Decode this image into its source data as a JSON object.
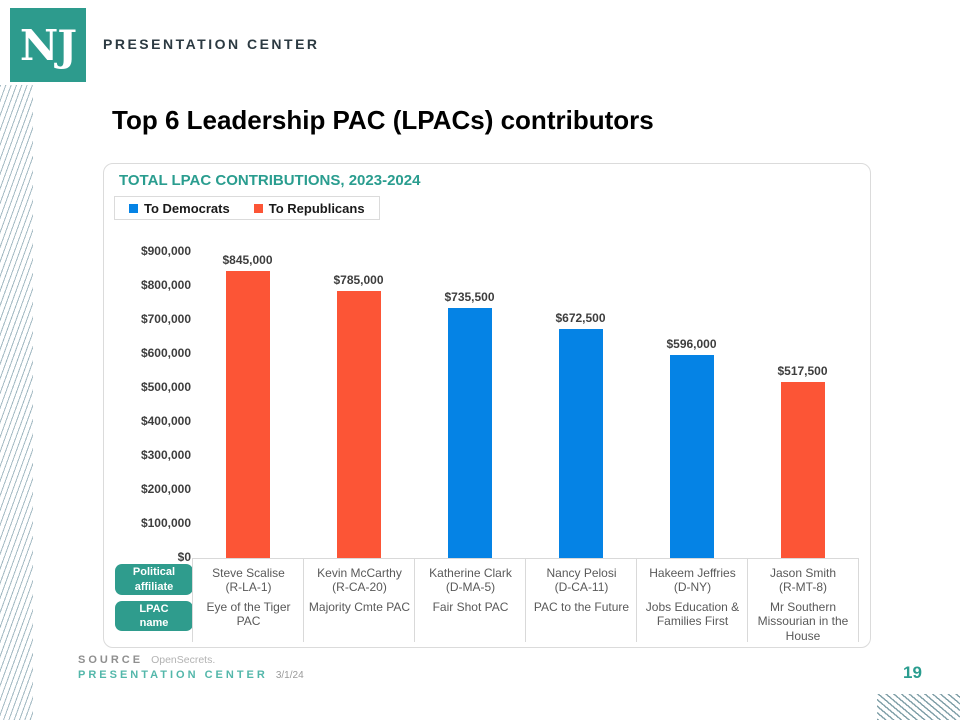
{
  "brand": {
    "logo_text": "NJ",
    "header_label": "PRESENTATION CENTER",
    "teal": "#2D9B8D"
  },
  "slide": {
    "title": "Top 6 Leadership PAC (LPACs) contributors",
    "page_number": "19"
  },
  "chart": {
    "title": "TOTAL LPAC CONTRIBUTIONS, 2023-2024",
    "legend": [
      {
        "label": "To Democrats",
        "color": "#0583E5"
      },
      {
        "label": "To Republicans",
        "color": "#FC5536"
      }
    ],
    "row_headers": {
      "affiliate": "Political\naffiliate",
      "lpac": "LPAC\nname"
    }
  },
  "chart_data": {
    "type": "bar",
    "title": "TOTAL LPAC CONTRIBUTIONS, 2023-2024",
    "unit": "USD",
    "ylim": [
      0,
      900000
    ],
    "ytick_interval": 100000,
    "ytick_labels_top_to_bottom": [
      "$900,000",
      "$800,000",
      "$700,000",
      "$600,000",
      "$500,000",
      "$400,000",
      "$300,000",
      "$200,000",
      "$100,000",
      "$0"
    ],
    "grid": false,
    "legend_position": "top-left",
    "party_colors": {
      "D": "#0583E5",
      "R": "#FC5536"
    },
    "bars": [
      {
        "politician": "Steve Scalise",
        "district": "(R-LA-1)",
        "pac": "Eye of the Tiger PAC",
        "value": 845000,
        "label": "$845,000",
        "party": "R"
      },
      {
        "politician": "Kevin McCarthy",
        "district": "(R-CA-20)",
        "pac": "Majority Cmte PAC",
        "value": 785000,
        "label": "$785,000",
        "party": "R"
      },
      {
        "politician": "Katherine Clark",
        "district": "(D-MA-5)",
        "pac": "Fair Shot PAC",
        "value": 735500,
        "label": "$735,500",
        "party": "D"
      },
      {
        "politician": "Nancy Pelosi",
        "district": "(D-CA-11)",
        "pac": "PAC to the Future",
        "value": 672500,
        "label": "$672,500",
        "party": "D"
      },
      {
        "politician": "Hakeem Jeffries",
        "district": "(D-NY)",
        "pac": "Jobs Education & Families First",
        "value": 596000,
        "label": "$596,000",
        "party": "D"
      },
      {
        "politician": "Jason Smith",
        "district": "(R-MT-8)",
        "pac": "Mr Southern Missourian in the House",
        "value": 517500,
        "label": "$517,500",
        "party": "R"
      }
    ]
  },
  "footer": {
    "source_label": "SOURCE",
    "source_value": "OpenSecrets.",
    "brand_label": "PRESENTATION CENTER",
    "date": "3/1/24"
  }
}
